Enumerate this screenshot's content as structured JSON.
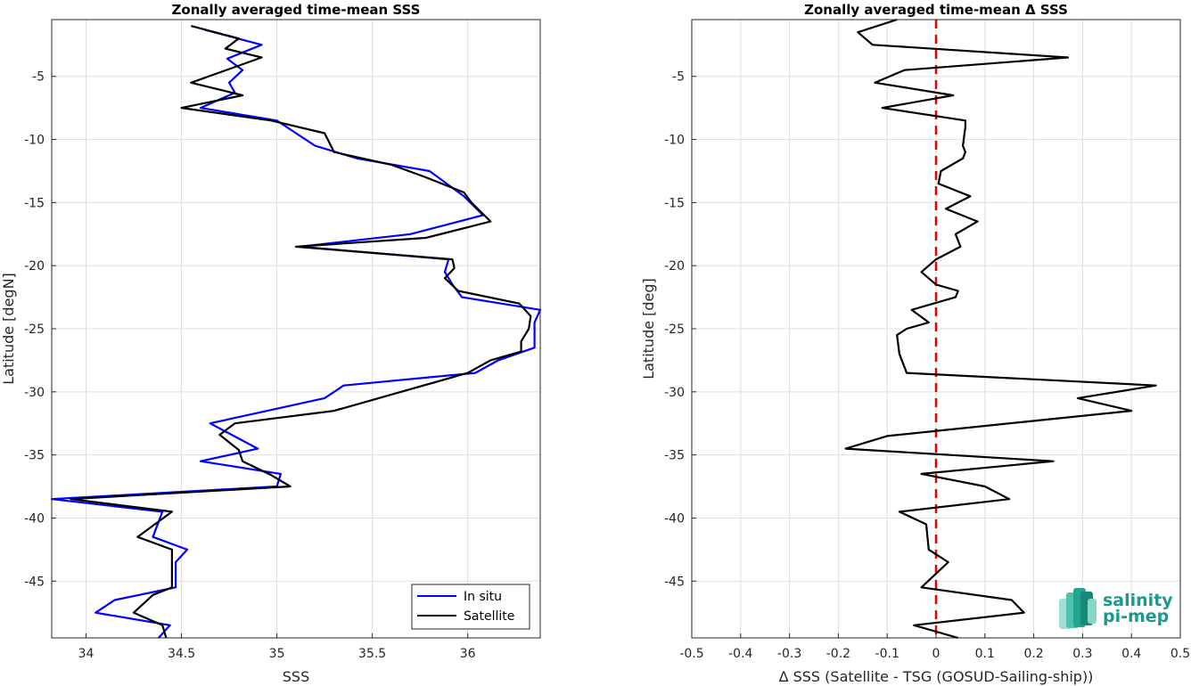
{
  "chart_data": [
    {
      "type": "line",
      "title": "Zonally averaged time-mean SSS",
      "xlabel": "SSS",
      "ylabel": "Latitude [degN]",
      "xlim": [
        33.82,
        36.38
      ],
      "ylim": [
        -49.5,
        -0.5
      ],
      "xticks": [
        34,
        34.5,
        35,
        35.5,
        36
      ],
      "xtick_labels": [
        "34",
        "34.5",
        "35",
        "35.5",
        "36"
      ],
      "yticks": [
        -5,
        -10,
        -15,
        -20,
        -25,
        -30,
        -35,
        -40,
        -45
      ],
      "ytick_labels": [
        "-5",
        "-10",
        "-15",
        "-20",
        "-25",
        "-30",
        "-35",
        "-40",
        "-45"
      ],
      "grid": true,
      "legend": "bottom-right",
      "series": [
        {
          "name": "In situ",
          "color": "#0000ff",
          "points": [
            [
              34.62,
              -1.3
            ],
            [
              34.92,
              -2.5
            ],
            [
              34.74,
              -3.6
            ],
            [
              34.82,
              -4.5
            ],
            [
              34.75,
              -5.5
            ],
            [
              34.78,
              -6.3
            ],
            [
              34.6,
              -7.5
            ],
            [
              35.0,
              -8.5
            ],
            [
              35.1,
              -9.5
            ],
            [
              35.2,
              -10.5
            ],
            [
              35.42,
              -11.5
            ],
            [
              35.8,
              -12.5
            ],
            [
              35.98,
              -14.5
            ],
            [
              36.08,
              -16.0
            ],
            [
              35.7,
              -17.5
            ],
            [
              35.12,
              -18.5
            ],
            [
              35.9,
              -19.5
            ],
            [
              35.88,
              -20.5
            ],
            [
              35.92,
              -21.5
            ],
            [
              35.97,
              -22.5
            ],
            [
              36.38,
              -23.5
            ],
            [
              36.35,
              -24.5
            ],
            [
              36.35,
              -25.5
            ],
            [
              36.35,
              -26.5
            ],
            [
              36.16,
              -27.5
            ],
            [
              36.04,
              -28.5
            ],
            [
              35.35,
              -29.5
            ],
            [
              35.25,
              -30.5
            ],
            [
              34.95,
              -31.5
            ],
            [
              34.65,
              -32.5
            ],
            [
              34.9,
              -34.5
            ],
            [
              34.6,
              -35.5
            ],
            [
              35.02,
              -36.5
            ],
            [
              35.0,
              -37.5
            ],
            [
              33.82,
              -38.5
            ],
            [
              34.4,
              -39.5
            ],
            [
              34.35,
              -41.5
            ],
            [
              34.53,
              -42.5
            ],
            [
              34.47,
              -43.5
            ],
            [
              34.47,
              -45.5
            ],
            [
              34.15,
              -46.5
            ],
            [
              34.05,
              -47.5
            ],
            [
              34.44,
              -48.5
            ],
            [
              34.38,
              -49.5
            ]
          ]
        },
        {
          "name": "Satellite",
          "color": "#000000",
          "points": [
            [
              34.55,
              -1.0
            ],
            [
              34.8,
              -2.0
            ],
            [
              34.73,
              -2.8
            ],
            [
              34.92,
              -3.5
            ],
            [
              34.55,
              -5.5
            ],
            [
              34.82,
              -6.5
            ],
            [
              34.5,
              -7.5
            ],
            [
              34.97,
              -8.5
            ],
            [
              35.25,
              -9.5
            ],
            [
              35.3,
              -11.0
            ],
            [
              35.6,
              -12.0
            ],
            [
              35.78,
              -13.0
            ],
            [
              35.98,
              -14.2
            ],
            [
              36.02,
              -15.0
            ],
            [
              36.12,
              -16.5
            ],
            [
              35.78,
              -17.8
            ],
            [
              35.1,
              -18.5
            ],
            [
              35.92,
              -19.5
            ],
            [
              35.93,
              -20.2
            ],
            [
              35.88,
              -21.0
            ],
            [
              35.95,
              -22.0
            ],
            [
              36.27,
              -23.0
            ],
            [
              36.33,
              -24.0
            ],
            [
              36.32,
              -25.0
            ],
            [
              36.28,
              -26.0
            ],
            [
              36.28,
              -26.8
            ],
            [
              36.12,
              -27.5
            ],
            [
              36.0,
              -28.5
            ],
            [
              35.3,
              -31.5
            ],
            [
              34.78,
              -32.5
            ],
            [
              34.7,
              -33.4
            ],
            [
              34.8,
              -34.6
            ],
            [
              34.82,
              -35.5
            ],
            [
              34.97,
              -36.6
            ],
            [
              35.07,
              -37.5
            ],
            [
              33.92,
              -38.5
            ],
            [
              34.45,
              -39.5
            ],
            [
              34.27,
              -41.5
            ],
            [
              34.45,
              -42.5
            ],
            [
              34.45,
              -44.5
            ],
            [
              34.45,
              -45.5
            ],
            [
              34.35,
              -46.1
            ],
            [
              34.25,
              -47.5
            ],
            [
              34.4,
              -48.5
            ],
            [
              34.42,
              -49.5
            ]
          ]
        }
      ]
    },
    {
      "type": "line",
      "title": "Zonally averaged time-mean Δ SSS",
      "xlabel": "Δ SSS (Satellite - TSG (GOSUD-Sailing-ship))",
      "ylabel": "Latitude [deg]",
      "xlim": [
        -0.5,
        0.5
      ],
      "ylim": [
        -49.5,
        -0.5
      ],
      "xticks": [
        -0.5,
        -0.4,
        -0.3,
        -0.2,
        -0.1,
        0,
        0.1,
        0.2,
        0.3,
        0.4,
        0.5
      ],
      "xtick_labels": [
        "-0.5",
        "-0.4",
        "-0.3",
        "-0.2",
        "-0.1",
        "0",
        "0.1",
        "0.2",
        "0.3",
        "0.4",
        "0.5"
      ],
      "yticks": [
        -5,
        -10,
        -15,
        -20,
        -25,
        -30,
        -35,
        -40,
        -45
      ],
      "ytick_labels": [
        "-5",
        "-10",
        "-15",
        "-20",
        "-25",
        "-30",
        "-35",
        "-40",
        "-45"
      ],
      "grid": true,
      "reference_line": {
        "x": 0,
        "color": "#e60000",
        "style": "dashed"
      },
      "series": [
        {
          "color": "#000000",
          "points": [
            [
              -0.08,
              -0.5
            ],
            [
              -0.16,
              -1.5
            ],
            [
              -0.13,
              -2.5
            ],
            [
              0.27,
              -3.5
            ],
            [
              -0.065,
              -4.5
            ],
            [
              -0.125,
              -5.5
            ],
            [
              0.035,
              -6.5
            ],
            [
              -0.11,
              -7.5
            ],
            [
              0.06,
              -8.5
            ],
            [
              0.06,
              -9.0
            ],
            [
              0.055,
              -10.5
            ],
            [
              0.06,
              -11.0
            ],
            [
              0.055,
              -11.5
            ],
            [
              0.01,
              -12.5
            ],
            [
              0.005,
              -13.5
            ],
            [
              0.07,
              -14.5
            ],
            [
              0.02,
              -15.5
            ],
            [
              0.085,
              -16.5
            ],
            [
              0.04,
              -17.5
            ],
            [
              0.05,
              -18.5
            ],
            [
              0.0,
              -19.5
            ],
            [
              -0.03,
              -20.5
            ],
            [
              0.0,
              -21.5
            ],
            [
              0.045,
              -22.0
            ],
            [
              0.04,
              -22.5
            ],
            [
              -0.05,
              -23.5
            ],
            [
              -0.015,
              -24.5
            ],
            [
              -0.06,
              -25.0
            ],
            [
              -0.08,
              -25.5
            ],
            [
              -0.075,
              -27.0
            ],
            [
              -0.06,
              -28.5
            ],
            [
              0.45,
              -29.5
            ],
            [
              0.29,
              -30.5
            ],
            [
              0.4,
              -31.5
            ],
            [
              -0.1,
              -33.5
            ],
            [
              -0.185,
              -34.5
            ],
            [
              0.24,
              -35.5
            ],
            [
              -0.03,
              -36.5
            ],
            [
              0.1,
              -37.5
            ],
            [
              0.15,
              -38.5
            ],
            [
              -0.075,
              -39.5
            ],
            [
              -0.02,
              -40.5
            ],
            [
              -0.015,
              -42.5
            ],
            [
              0.025,
              -43.5
            ],
            [
              -0.03,
              -45.5
            ],
            [
              0.155,
              -46.5
            ],
            [
              0.18,
              -47.5
            ],
            [
              -0.045,
              -48.5
            ],
            [
              0.045,
              -49.5
            ]
          ]
        }
      ]
    }
  ],
  "logo": {
    "line1": "salinity",
    "line2": "pi-mep"
  },
  "colors": {
    "in_situ": "#0000ff",
    "satellite": "#000000",
    "reference": "#e60000",
    "grid": "#dfdfdf",
    "logo": "#1a9a8c"
  }
}
